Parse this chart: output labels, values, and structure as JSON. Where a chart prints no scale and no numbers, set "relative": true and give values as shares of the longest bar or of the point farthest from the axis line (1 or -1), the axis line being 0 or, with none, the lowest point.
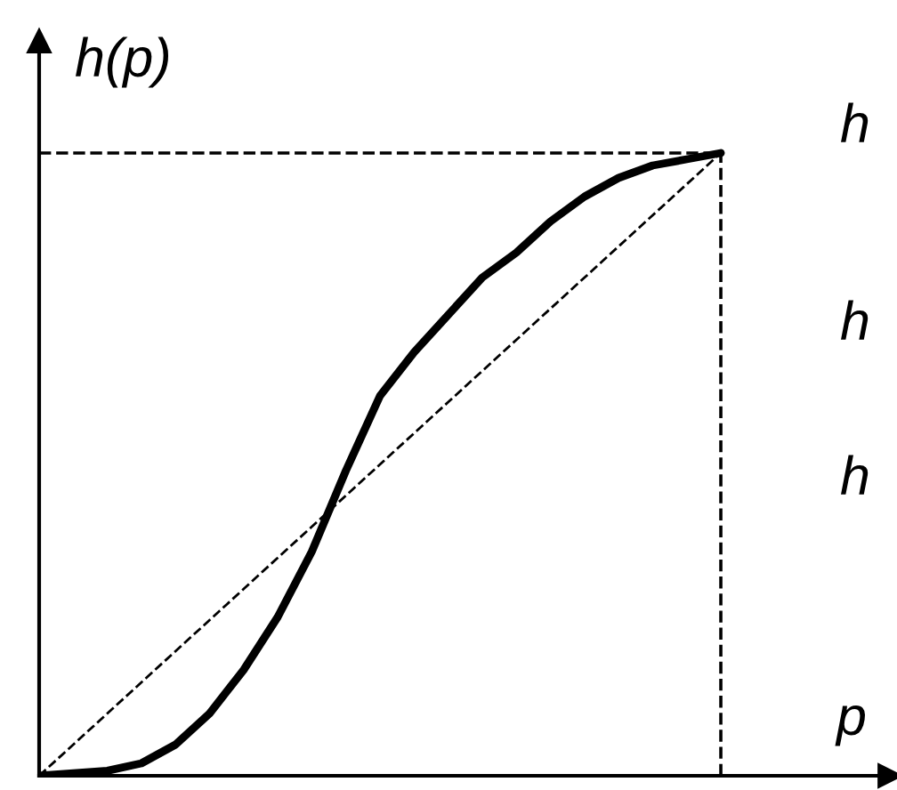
{
  "chart_data": {
    "type": "line",
    "relative": true,
    "xlabel": "p",
    "ylabel": "h(p)",
    "annotations": [
      "h",
      "h",
      "h"
    ],
    "categories": [
      null,
      null,
      null,
      null,
      null,
      null,
      null,
      null,
      null,
      null,
      null,
      null,
      null,
      null,
      null,
      null,
      null,
      null,
      null,
      null,
      null
    ],
    "series": [
      {
        "color": "#000000",
        "line_style": "solid",
        "values": [
          0,
          0.004,
          0.008,
          0.02,
          0.05,
          0.1,
          0.17,
          0.255,
          0.36,
          0.49,
          0.61,
          0.68,
          0.74,
          0.8,
          0.84,
          0.89,
          0.93,
          0.96,
          0.98,
          0.99,
          1
        ]
      },
      {
        "color": "#000000",
        "line_style": "dashed",
        "values": [
          0,
          0.05,
          0.1,
          0.15,
          0.2,
          0.25,
          0.3,
          0.35,
          0.4,
          0.45,
          0.5,
          0.55,
          0.6,
          0.65,
          0.7,
          0.75,
          0.8,
          0.85,
          0.9,
          0.95,
          1
        ]
      },
      {
        "color": "#000000",
        "line_style": "dashed",
        "values": [
          1,
          1,
          1,
          1,
          1,
          1,
          1,
          1,
          1,
          1,
          1,
          1,
          1,
          1,
          1,
          1,
          1,
          1,
          1,
          1,
          1
        ]
      }
    ],
    "ref_lines": [
      {
        "axis": "x",
        "value": null,
        "line_style": "dashed"
      }
    ]
  }
}
